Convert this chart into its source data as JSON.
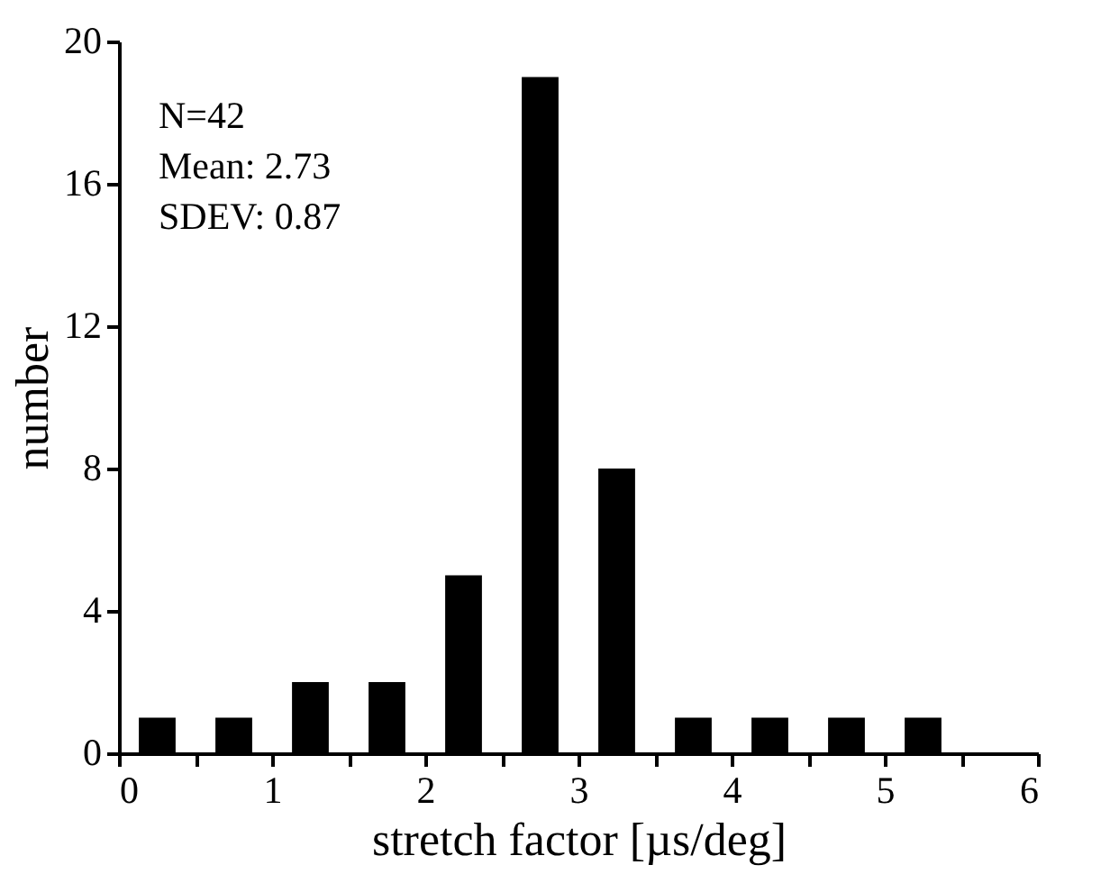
{
  "chart_data": {
    "type": "bar",
    "xlabel": "stretch factor [µs/deg]",
    "ylabel": "number",
    "x": [
      0.25,
      0.75,
      1.25,
      1.75,
      2.25,
      2.75,
      3.25,
      3.75,
      4.25,
      4.75,
      5.25
    ],
    "values": [
      1,
      1,
      2,
      2,
      5,
      19,
      8,
      1,
      1,
      1,
      1
    ],
    "color": "#000000",
    "xlim": [
      0,
      6
    ],
    "xticks": [
      0,
      {
        "value": 0.5,
        "label": null
      },
      1,
      {
        "value": 1.5,
        "label": null
      },
      2,
      {
        "value": 2.5,
        "label": null
      },
      3,
      {
        "value": 3.5,
        "label": null
      },
      4,
      {
        "value": 4.5,
        "label": null
      },
      5,
      {
        "value": 5.5,
        "label": null
      },
      6
    ],
    "ylim": [
      0,
      20
    ],
    "yticks": [
      0,
      4,
      8,
      12,
      16,
      20
    ],
    "grid": false,
    "annotations": [
      "N=42",
      "Mean: 2.73",
      "SDEV: 0.87"
    ]
  }
}
